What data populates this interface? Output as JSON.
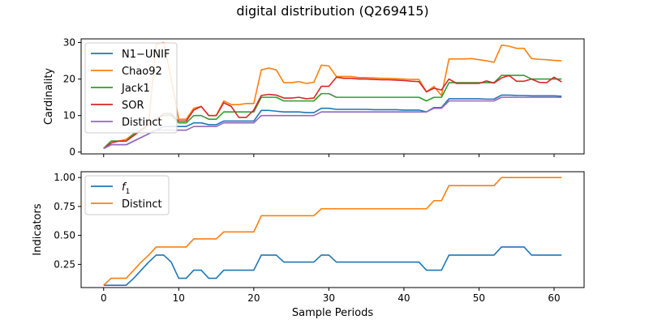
{
  "figure_title": "digital distribution (Q269415)",
  "colors": {
    "blue": "#1f77b4",
    "orange": "#ff7f0e",
    "green": "#2ca02c",
    "red": "#d62728",
    "purple": "#9467bd"
  },
  "chart_data": [
    {
      "type": "line",
      "ylabel": "Cardinality",
      "xlabel": "",
      "xlim": [
        -3,
        64
      ],
      "ylim": [
        -0.5,
        31
      ],
      "xticks": [
        0,
        10,
        20,
        30,
        40,
        50,
        60
      ],
      "yticks": [
        0,
        10,
        20,
        30
      ],
      "ytick_labels": [
        "0",
        "10",
        "20",
        "30"
      ],
      "show_xtick_labels": false,
      "legend_position": "upper left",
      "series": [
        {
          "name": "N1−UNIF",
          "color": "#1f77b4",
          "x": [
            0,
            1,
            2,
            3,
            4,
            5,
            6,
            7,
            8,
            9,
            10,
            11,
            12,
            13,
            14,
            15,
            16,
            17,
            18,
            19,
            20,
            21,
            22,
            23,
            24,
            25,
            26,
            27,
            28,
            29,
            30,
            31,
            32,
            33,
            34,
            35,
            36,
            37,
            38,
            39,
            40,
            41,
            42,
            43,
            44,
            45,
            46,
            47,
            48,
            49,
            50,
            51,
            52,
            53,
            54,
            55,
            56,
            57,
            58,
            59,
            60,
            61
          ],
          "y": [
            1,
            2,
            2,
            2,
            3,
            4,
            5,
            6,
            7,
            7,
            7,
            7,
            8,
            8,
            7.5,
            7.5,
            8.5,
            8.5,
            8.5,
            8.5,
            8.5,
            11.4,
            11.4,
            11.2,
            11,
            11,
            11,
            10.8,
            10.8,
            12,
            12,
            11.7,
            11.7,
            11.7,
            11.7,
            11.7,
            11.6,
            11.6,
            11.6,
            11.6,
            11.5,
            11.5,
            11.5,
            11,
            12.2,
            12.2,
            14.6,
            14.6,
            14.6,
            14.6,
            14.6,
            14.5,
            14.5,
            15.6,
            15.6,
            15.5,
            15.5,
            15.4,
            15.4,
            15.4,
            15.4,
            15.3
          ]
        },
        {
          "name": "Chao92",
          "color": "#ff7f0e",
          "x": [
            0,
            1,
            2,
            3,
            4,
            5,
            6,
            7,
            8,
            9,
            10,
            11,
            12,
            13,
            14,
            15,
            16,
            17,
            18,
            19,
            20,
            21,
            22,
            23,
            24,
            25,
            26,
            27,
            28,
            29,
            30,
            31,
            32,
            33,
            34,
            35,
            36,
            37,
            38,
            39,
            40,
            41,
            42,
            43,
            44,
            45,
            46,
            47,
            48,
            49,
            50,
            51,
            52,
            53,
            54,
            55,
            56,
            57,
            58,
            59,
            60,
            61
          ],
          "y": [
            1,
            3,
            3,
            3.5,
            5,
            6,
            8,
            29.5,
            30,
            20,
            9,
            9,
            12,
            12.5,
            10,
            10,
            14,
            13,
            13,
            13.3,
            13.3,
            22.5,
            23,
            22.5,
            19,
            19,
            19.3,
            18.8,
            19.1,
            23.8,
            23.6,
            20.7,
            20.7,
            20.7,
            20.4,
            20.4,
            20.3,
            20.2,
            20.2,
            20.1,
            20,
            19.9,
            19.9,
            16.5,
            18,
            15.5,
            25.5,
            25.5,
            25.5,
            25.6,
            25.3,
            25,
            24.6,
            29.3,
            29,
            28.4,
            28.4,
            25.6,
            25.4,
            25.3,
            25.1,
            25
          ]
        },
        {
          "name": "Jack1",
          "color": "#2ca02c",
          "x": [
            0,
            1,
            2,
            3,
            4,
            5,
            6,
            7,
            8,
            9,
            10,
            11,
            12,
            13,
            14,
            15,
            16,
            17,
            18,
            19,
            20,
            21,
            22,
            23,
            24,
            25,
            26,
            27,
            28,
            29,
            30,
            31,
            32,
            33,
            34,
            35,
            36,
            37,
            38,
            39,
            40,
            41,
            42,
            43,
            44,
            45,
            46,
            47,
            48,
            49,
            50,
            51,
            52,
            53,
            54,
            55,
            56,
            57,
            58,
            59,
            60,
            61
          ],
          "y": [
            1,
            3,
            3,
            3,
            5,
            6,
            8,
            9,
            10,
            10,
            8,
            8,
            10,
            10,
            9,
            9,
            11,
            11,
            11,
            11,
            11,
            15,
            15,
            15,
            14,
            14,
            14,
            14,
            14,
            16,
            16,
            15,
            15,
            15,
            15,
            15,
            15,
            15,
            15,
            15,
            15,
            15,
            15,
            14,
            15,
            15,
            19,
            19,
            19,
            19,
            19,
            19,
            19,
            21,
            21,
            21,
            21,
            20,
            20,
            20,
            20,
            20
          ]
        },
        {
          "name": "SOR",
          "color": "#d62728",
          "x": [
            0,
            1,
            2,
            3,
            4,
            5,
            6,
            7,
            8,
            9,
            10,
            11,
            12,
            13,
            14,
            15,
            16,
            17,
            18,
            19,
            20,
            21,
            22,
            23,
            24,
            25,
            26,
            27,
            28,
            29,
            30,
            31,
            32,
            33,
            34,
            35,
            36,
            37,
            38,
            39,
            40,
            41,
            42,
            43,
            44,
            45,
            46,
            47,
            48,
            49,
            50,
            51,
            52,
            53,
            54,
            55,
            56,
            57,
            58,
            59,
            60,
            61
          ],
          "y": [
            1,
            2.5,
            3,
            3,
            4.5,
            6,
            7.5,
            9,
            10.5,
            10.5,
            8.5,
            8.5,
            11.5,
            12.5,
            10,
            10,
            13.5,
            12.5,
            9.5,
            9.5,
            11.5,
            15.5,
            15.8,
            15.6,
            14.8,
            14.8,
            15,
            14.6,
            14.8,
            18,
            18,
            20.5,
            20.2,
            20.2,
            20,
            20,
            19.9,
            19.8,
            19.8,
            19.7,
            19.6,
            19.4,
            19.3,
            16.5,
            17.5,
            17,
            20,
            18.8,
            18.8,
            18.8,
            18.8,
            19.5,
            18.9,
            20.3,
            21,
            19.4,
            19.4,
            20,
            19.1,
            19,
            20.5,
            19.2
          ]
        },
        {
          "name": "Distinct",
          "color": "#9467bd",
          "x": [
            0,
            1,
            2,
            3,
            4,
            5,
            6,
            7,
            8,
            9,
            10,
            11,
            12,
            13,
            14,
            15,
            16,
            17,
            18,
            19,
            20,
            21,
            22,
            23,
            24,
            25,
            26,
            27,
            28,
            29,
            30,
            31,
            32,
            33,
            34,
            35,
            36,
            37,
            38,
            39,
            40,
            41,
            42,
            43,
            44,
            45,
            46,
            47,
            48,
            49,
            50,
            51,
            52,
            53,
            54,
            55,
            56,
            57,
            58,
            59,
            60,
            61
          ],
          "y": [
            1,
            2,
            2,
            2,
            3,
            4,
            5,
            6,
            6,
            6,
            6,
            6,
            7,
            7,
            7,
            7,
            8,
            8,
            8,
            8,
            8,
            10,
            10,
            10,
            10,
            10,
            10,
            10,
            10,
            11,
            11,
            11,
            11,
            11,
            11,
            11,
            11,
            11,
            11,
            11,
            11,
            11,
            11,
            11,
            12,
            12,
            14,
            14,
            14,
            14,
            14,
            14,
            14,
            15,
            15,
            15,
            15,
            15,
            15,
            15,
            15,
            15
          ]
        }
      ]
    },
    {
      "type": "line",
      "ylabel": "Indicators",
      "xlabel": "Sample Periods",
      "xlim": [
        -3,
        64
      ],
      "ylim": [
        0.05,
        1.05
      ],
      "xticks": [
        0,
        10,
        20,
        30,
        40,
        50,
        60
      ],
      "xtick_labels": [
        "0",
        "10",
        "20",
        "30",
        "40",
        "50",
        "60"
      ],
      "yticks": [
        0.25,
        0.5,
        0.75,
        1.0
      ],
      "ytick_labels": [
        "0.25",
        "0.50",
        "0.75",
        "1.00"
      ],
      "legend_position": "upper left",
      "series": [
        {
          "name": "f",
          "name_subscript": "1",
          "color": "#1f77b4",
          "x": [
            0,
            1,
            2,
            3,
            4,
            5,
            6,
            7,
            8,
            9,
            10,
            11,
            12,
            13,
            14,
            15,
            16,
            17,
            18,
            19,
            20,
            21,
            22,
            23,
            24,
            25,
            26,
            27,
            28,
            29,
            30,
            31,
            32,
            33,
            34,
            35,
            36,
            37,
            38,
            39,
            40,
            41,
            42,
            43,
            44,
            45,
            46,
            47,
            48,
            49,
            50,
            51,
            52,
            53,
            54,
            55,
            56,
            57,
            58,
            59,
            60,
            61
          ],
          "y": [
            0.07,
            0.07,
            0.07,
            0.07,
            0.13,
            0.2,
            0.27,
            0.33,
            0.33,
            0.27,
            0.13,
            0.13,
            0.2,
            0.2,
            0.13,
            0.13,
            0.2,
            0.2,
            0.2,
            0.2,
            0.2,
            0.33,
            0.33,
            0.33,
            0.27,
            0.27,
            0.27,
            0.27,
            0.27,
            0.33,
            0.33,
            0.27,
            0.27,
            0.27,
            0.27,
            0.27,
            0.27,
            0.27,
            0.27,
            0.27,
            0.27,
            0.27,
            0.27,
            0.2,
            0.2,
            0.2,
            0.33,
            0.33,
            0.33,
            0.33,
            0.33,
            0.33,
            0.33,
            0.4,
            0.4,
            0.4,
            0.4,
            0.33,
            0.33,
            0.33,
            0.33,
            0.33
          ]
        },
        {
          "name": "Distinct",
          "color": "#ff7f0e",
          "x": [
            0,
            1,
            2,
            3,
            4,
            5,
            6,
            7,
            8,
            9,
            10,
            11,
            12,
            13,
            14,
            15,
            16,
            17,
            18,
            19,
            20,
            21,
            22,
            23,
            24,
            25,
            26,
            27,
            28,
            29,
            30,
            31,
            32,
            33,
            34,
            35,
            36,
            37,
            38,
            39,
            40,
            41,
            42,
            43,
            44,
            45,
            46,
            47,
            48,
            49,
            50,
            51,
            52,
            53,
            54,
            55,
            56,
            57,
            58,
            59,
            60,
            61
          ],
          "y": [
            0.07,
            0.13,
            0.13,
            0.13,
            0.2,
            0.27,
            0.33,
            0.4,
            0.4,
            0.4,
            0.4,
            0.4,
            0.47,
            0.47,
            0.47,
            0.47,
            0.53,
            0.53,
            0.53,
            0.53,
            0.53,
            0.67,
            0.67,
            0.67,
            0.67,
            0.67,
            0.67,
            0.67,
            0.67,
            0.73,
            0.73,
            0.73,
            0.73,
            0.73,
            0.73,
            0.73,
            0.73,
            0.73,
            0.73,
            0.73,
            0.73,
            0.73,
            0.73,
            0.73,
            0.8,
            0.8,
            0.93,
            0.93,
            0.93,
            0.93,
            0.93,
            0.93,
            0.93,
            1.0,
            1.0,
            1.0,
            1.0,
            1.0,
            1.0,
            1.0,
            1.0,
            1.0
          ]
        }
      ]
    }
  ]
}
